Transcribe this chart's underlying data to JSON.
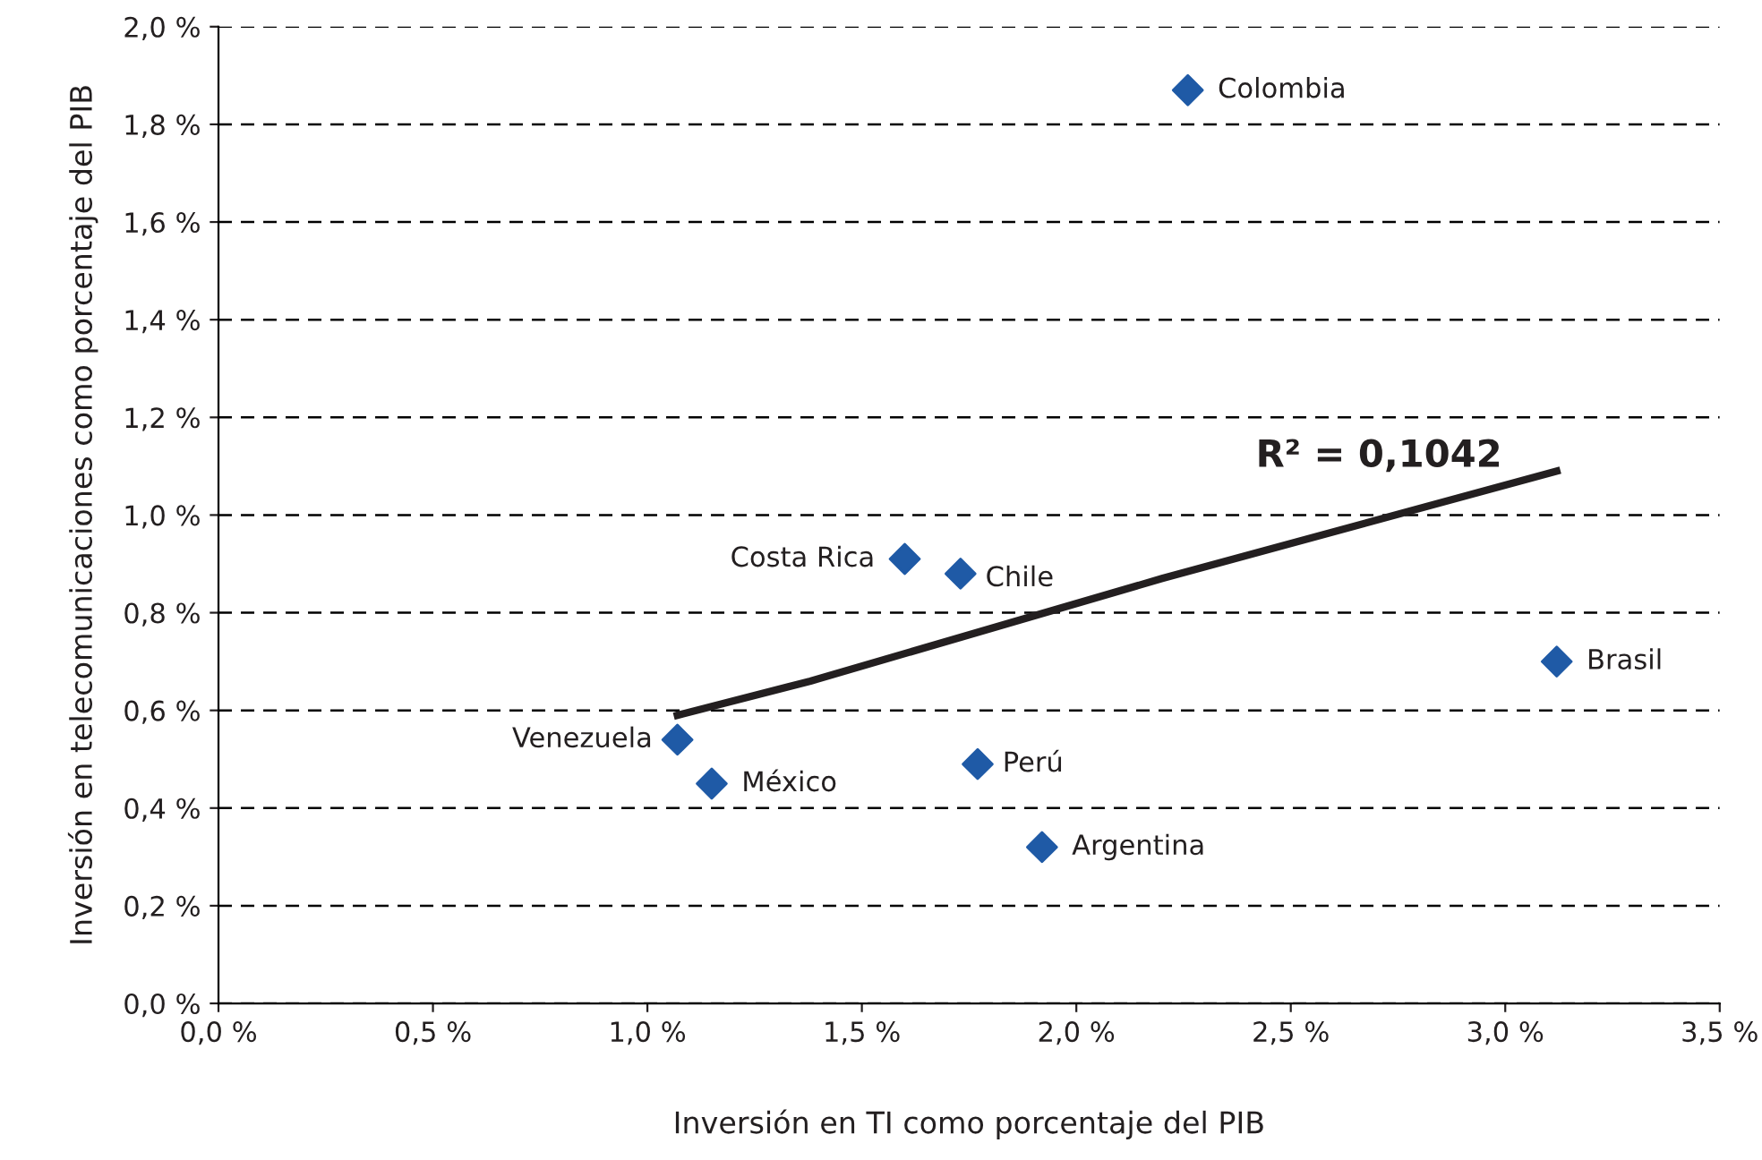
{
  "chart_data": {
    "type": "scatter",
    "xlabel": "Inversión en TI como porcentaje del PIB",
    "ylabel": "Inversión en telecomunicaciones como porcentaje del PIB",
    "series": [
      {
        "color": "#1f5aa6",
        "marker": "diamond",
        "x": [
          2.26,
          1.6,
          1.73,
          3.12,
          1.07,
          1.15,
          1.77,
          1.92
        ],
        "values": [
          1.87,
          0.91,
          0.88,
          0.7,
          0.54,
          0.45,
          0.49,
          0.32
        ]
      },
      {
        "type": "line",
        "color": "#231f20",
        "marker": "none",
        "line_style": "solid",
        "x": [
          1.07,
          1.38,
          2.2,
          3.12
        ],
        "values": [
          0.59,
          0.66,
          0.87,
          1.09
        ]
      }
    ],
    "annotations": [
      {
        "text": "Colombia",
        "x": 2.26,
        "y": 1.87
      },
      {
        "text": "Costa Rica",
        "x": 1.6,
        "y": 0.91
      },
      {
        "text": "Chile",
        "x": 1.73,
        "y": 0.88
      },
      {
        "text": "Brasil",
        "x": 3.12,
        "y": 0.7
      },
      {
        "text": "Venezuela",
        "x": 1.07,
        "y": 0.54
      },
      {
        "text": "México",
        "x": 1.15,
        "y": 0.45
      },
      {
        "text": "Perú",
        "x": 1.77,
        "y": 0.49
      },
      {
        "text": "Argentina",
        "x": 1.92,
        "y": 0.32
      },
      "R² = 0,1042"
    ],
    "xlim": [
      0,
      3.5
    ],
    "xticks": [
      {
        "value": 0,
        "label": "0,0 %"
      },
      {
        "value": 0.5,
        "label": "0,5 %"
      },
      {
        "value": 1.0,
        "label": "1,0 %"
      },
      {
        "value": 1.5,
        "label": "1,5 %"
      },
      {
        "value": 2.0,
        "label": "2,0 %"
      },
      {
        "value": 2.5,
        "label": "2,5 %"
      },
      {
        "value": 3.0,
        "label": "3,0 %"
      },
      {
        "value": 3.5,
        "label": "3,5 %"
      }
    ],
    "ylim": [
      0,
      2.0
    ],
    "yticks": [
      {
        "value": 0,
        "label": "0,0 %"
      },
      {
        "value": 0.2,
        "label": "0,2 %"
      },
      {
        "value": 0.4,
        "label": "0,4 %"
      },
      {
        "value": 0.6,
        "label": "0,6 %"
      },
      {
        "value": 0.8,
        "label": "0,8 %"
      },
      {
        "value": 1.0,
        "label": "1,0 %"
      },
      {
        "value": 1.2,
        "label": "1,2 %"
      },
      {
        "value": 1.4,
        "label": "1,4 %"
      },
      {
        "value": 1.6,
        "label": "1,6 %"
      },
      {
        "value": 1.8,
        "label": "1,8 %"
      },
      {
        "value": 2.0,
        "label": "2,0 %"
      }
    ],
    "grid": "y"
  }
}
